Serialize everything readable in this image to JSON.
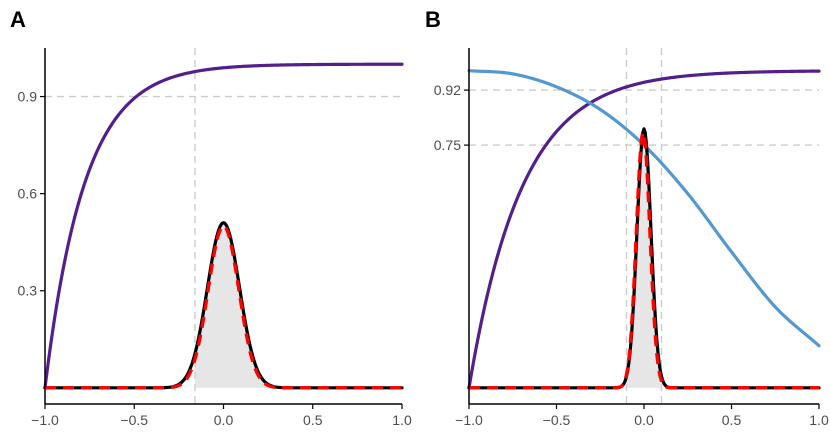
{
  "colors": {
    "purple": "#541e8c",
    "blue": "#5498cf",
    "black": "#000000",
    "red": "#ff0000",
    "ref_line": "#cccccc",
    "fill": "#e6e6e6",
    "axis": "#000000",
    "tick_text": "#4d4d4d"
  },
  "chart_data": [
    {
      "panel_label": "A",
      "type": "line",
      "xlim": [
        -1.0,
        1.0
      ],
      "ylim": [
        -0.05,
        1.05
      ],
      "x_ticks": [
        -1.0,
        -0.5,
        0.0,
        0.5,
        1.0
      ],
      "x_tick_labels": [
        "−1.0",
        "−0.5",
        "0.0",
        "0.5",
        "1.0"
      ],
      "y_ticks": [
        0.3,
        0.6,
        0.9
      ],
      "y_tick_labels": [
        "0.3",
        "0.6",
        "0.9"
      ],
      "hlines": [
        0.9
      ],
      "vlines": [
        -0.16
      ],
      "grid": false,
      "series": [
        {
          "kind": "cdf",
          "color": "purple",
          "style": "solid",
          "width": 3.2,
          "shape": "saturating",
          "y0": 0.0,
          "plateau": 1.0,
          "rate": 4.5
        },
        {
          "kind": "density-fill",
          "color": "fill",
          "center": 0.0,
          "sd": 0.09,
          "peak": 0.51,
          "x_from": -0.16,
          "x_to": 1.0
        },
        {
          "kind": "density",
          "color": "black",
          "style": "solid",
          "width": 3.2,
          "center": 0.0,
          "sd": 0.09,
          "peak": 0.51
        },
        {
          "kind": "density",
          "color": "red",
          "style": "dashed",
          "width": 3.4,
          "center": 0.0,
          "sd": 0.086,
          "peak": 0.5
        }
      ]
    },
    {
      "panel_label": "B",
      "type": "line",
      "xlim": [
        -1.0,
        1.0
      ],
      "ylim": [
        -0.05,
        1.05
      ],
      "x_ticks": [
        -1.0,
        -0.5,
        0.0,
        0.5,
        1.0
      ],
      "x_tick_labels": [
        "−1.0",
        "−0.5",
        "0.0",
        "0.5",
        "1.0"
      ],
      "y_ticks": [
        0.75,
        0.92
      ],
      "y_tick_labels": [
        "0.75",
        "0.92"
      ],
      "hlines": [
        0.92,
        0.75
      ],
      "vlines": [
        -0.1,
        0.1
      ],
      "grid": false,
      "series": [
        {
          "kind": "cdf",
          "color": "purple",
          "style": "solid",
          "width": 3.2,
          "shape": "saturating",
          "y0": 0.0,
          "plateau": 0.98,
          "rate": 3.3
        },
        {
          "kind": "curve",
          "color": "blue",
          "style": "solid",
          "width": 3.2,
          "shape": "decreasing",
          "x": [
            -1.0,
            -0.75,
            -0.5,
            -0.25,
            0.0,
            0.25,
            0.5,
            0.75,
            1.0
          ],
          "y": [
            0.98,
            0.97,
            0.93,
            0.86,
            0.75,
            0.6,
            0.42,
            0.25,
            0.13
          ]
        },
        {
          "kind": "density-fill",
          "color": "fill",
          "center": 0.0,
          "sd": 0.04,
          "peak": 0.8,
          "x_from": -0.1,
          "x_to": 0.1
        },
        {
          "kind": "density",
          "color": "black",
          "style": "solid",
          "width": 3.2,
          "center": 0.0,
          "sd": 0.04,
          "peak": 0.8
        },
        {
          "kind": "density",
          "color": "red",
          "style": "dashed",
          "width": 3.4,
          "center": -0.005,
          "sd": 0.039,
          "peak": 0.79
        }
      ]
    }
  ]
}
